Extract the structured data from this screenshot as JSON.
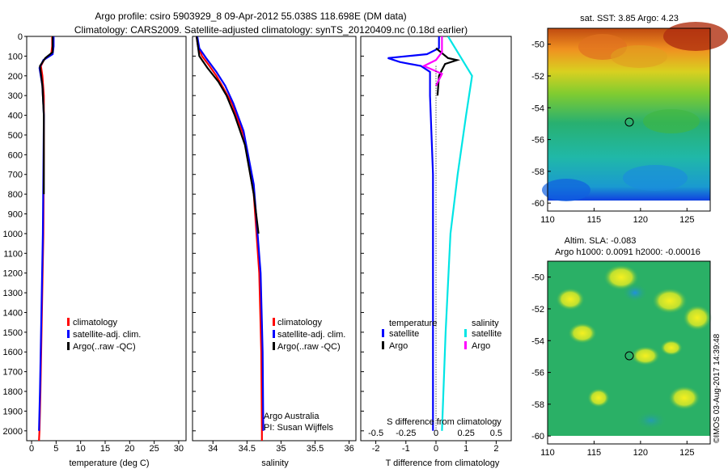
{
  "header": {
    "line1": "Argo profile: csiro 5903929_8 09-Apr-2012 55.038S 118.698E (DM data)",
    "line2": "Climatology: CARS2009. Satellite-adjusted climatology: synTS_20120409.nc (0.18d earlier)"
  },
  "colors": {
    "red": "#ff0000",
    "blue": "#0000ff",
    "black": "#000000",
    "cyan": "#00e5e5",
    "magenta": "#ff00ff"
  },
  "depth_axis": {
    "ylim": [
      0,
      2050
    ],
    "ticks": [
      0,
      100,
      200,
      300,
      400,
      500,
      600,
      700,
      800,
      900,
      1000,
      1100,
      1200,
      1300,
      1400,
      1500,
      1600,
      1700,
      1800,
      1900,
      2000
    ]
  },
  "chart_data": [
    {
      "name": "temperature-profile",
      "type": "line",
      "xlabel": "temperature (deg C)",
      "xlim": [
        -1,
        31.5
      ],
      "xticks": [
        0,
        5,
        10,
        15,
        20,
        25,
        30
      ],
      "legend": [
        "climatology",
        "satellite-adj. clim.",
        "Argo(..raw -QC)"
      ],
      "series": [
        {
          "name": "climatology",
          "color": "red",
          "points": [
            [
              4.2,
              0
            ],
            [
              4.2,
              50
            ],
            [
              4.0,
              90
            ],
            [
              2.5,
              120
            ],
            [
              1.9,
              150
            ],
            [
              2.2,
              200
            ],
            [
              2.5,
              300
            ],
            [
              2.5,
              600
            ],
            [
              2.4,
              1000
            ],
            [
              2.1,
              1400
            ],
            [
              1.8,
              1800
            ],
            [
              1.6,
              2000
            ],
            [
              1.5,
              2050
            ]
          ]
        },
        {
          "name": "satellite-adj. clim.",
          "color": "blue",
          "points": [
            [
              4.5,
              0
            ],
            [
              4.5,
              50
            ],
            [
              4.3,
              90
            ],
            [
              2.4,
              120
            ],
            [
              1.6,
              160
            ],
            [
              2.2,
              250
            ],
            [
              2.5,
              400
            ],
            [
              2.4,
              700
            ],
            [
              2.3,
              1000
            ],
            [
              2.0,
              1400
            ],
            [
              1.7,
              1800
            ],
            [
              1.5,
              2000
            ]
          ]
        },
        {
          "name": "Argo",
          "color": "black",
          "points": [
            [
              4.3,
              0
            ],
            [
              4.3,
              80
            ],
            [
              2.8,
              110
            ],
            [
              1.7,
              150
            ],
            [
              2.2,
              250
            ],
            [
              2.5,
              400
            ],
            [
              2.5,
              800
            ]
          ]
        }
      ]
    },
    {
      "name": "salinity-profile",
      "type": "line",
      "xlabel": "salinity",
      "xlim": [
        33.7,
        36.1
      ],
      "xticks": [
        "34",
        "34.5",
        "35",
        "35.5",
        "36"
      ],
      "legend": [
        "climatology",
        "satellite-adj. clim.",
        "Argo(..raw -QC)"
      ],
      "annotation": [
        "Argo Australia",
        "PI: Susan Wijffels"
      ],
      "series": [
        {
          "name": "climatology",
          "color": "red",
          "points": [
            [
              33.76,
              0
            ],
            [
              33.78,
              50
            ],
            [
              33.84,
              100
            ],
            [
              33.95,
              150
            ],
            [
              34.05,
              200
            ],
            [
              34.15,
              260
            ],
            [
              34.28,
              340
            ],
            [
              34.45,
              500
            ],
            [
              34.6,
              800
            ],
            [
              34.68,
              1200
            ],
            [
              34.71,
              1600
            ],
            [
              34.72,
              2000
            ],
            [
              34.72,
              2050
            ]
          ]
        },
        {
          "name": "satellite-adj. clim.",
          "color": "blue",
          "points": [
            [
              33.77,
              0
            ],
            [
              33.8,
              60
            ],
            [
              33.9,
              110
            ],
            [
              34.05,
              180
            ],
            [
              34.18,
              250
            ],
            [
              34.3,
              340
            ],
            [
              34.45,
              480
            ],
            [
              34.6,
              750
            ],
            [
              34.7,
              1200
            ],
            [
              34.73,
              1600
            ],
            [
              34.74,
              2000
            ]
          ]
        },
        {
          "name": "Argo",
          "color": "black",
          "points": [
            [
              33.76,
              0
            ],
            [
              33.8,
              100
            ],
            [
              33.92,
              160
            ],
            [
              34.08,
              230
            ],
            [
              34.2,
              300
            ],
            [
              34.32,
              400
            ],
            [
              34.47,
              550
            ],
            [
              34.6,
              800
            ],
            [
              34.67,
              1000
            ]
          ]
        }
      ]
    },
    {
      "name": "difference-profile",
      "type": "line",
      "xlabel_bottom": "T difference from climatology",
      "xlabel_top": "S difference from climatology",
      "xlim_T": [
        -2.5,
        2.5
      ],
      "xticks_T": [
        "-2",
        "-1",
        "0",
        "1",
        "2"
      ],
      "xticks_S": [
        "-0.5",
        "-0.25",
        "0",
        "0.25",
        "0.5"
      ],
      "legend": {
        "temperature_heading": "temperature",
        "salinity_heading": "salinity",
        "temperature": [
          "satellite",
          "Argo"
        ],
        "salinity": [
          "satellite",
          "Argo"
        ]
      },
      "series": [
        {
          "name": "temperature satellite",
          "color": "blue",
          "points": [
            [
              0.1,
              0
            ],
            [
              0.1,
              60
            ],
            [
              -0.3,
              90
            ],
            [
              -1.6,
              110
            ],
            [
              -1.2,
              130
            ],
            [
              -0.5,
              150
            ],
            [
              -0.2,
              180
            ],
            [
              -0.2,
              300
            ],
            [
              -0.1,
              700
            ],
            [
              -0.1,
              1200
            ],
            [
              -0.1,
              2000
            ]
          ]
        },
        {
          "name": "temperature Argo",
          "color": "black",
          "points": [
            [
              0.0,
              60
            ],
            [
              0.4,
              110
            ],
            [
              0.7,
              120
            ],
            [
              0.3,
              140
            ],
            [
              0.2,
              170
            ],
            [
              0.1,
              200
            ],
            [
              0.05,
              300
            ]
          ]
        },
        {
          "name": "salinity satellite",
          "color": "cyan",
          "points": [
            [
              0.1,
              0
            ],
            [
              0.2,
              100
            ],
            [
              0.3,
              200
            ],
            [
              0.25,
              400
            ],
            [
              0.18,
              700
            ],
            [
              0.12,
              1000
            ],
            [
              0.08,
              1500
            ],
            [
              0.05,
              2000
            ]
          ]
        },
        {
          "name": "salinity Argo",
          "color": "magenta",
          "points": [
            [
              0.05,
              0
            ],
            [
              0.05,
              80
            ],
            [
              0.0,
              120
            ],
            [
              -0.1,
              150
            ],
            [
              0.05,
              190
            ],
            [
              0.0,
              250
            ]
          ]
        }
      ]
    },
    {
      "name": "sst-map",
      "type": "heatmap",
      "title": "sat. SST: 3.85 Argo: 4.23",
      "xticks": [
        "110",
        "115",
        "120",
        "125"
      ],
      "yticks": [
        "-50",
        "-52",
        "-54",
        "-56",
        "-58",
        "-60"
      ],
      "xlim": [
        110,
        127.5
      ],
      "ylim": [
        -60.5,
        -49
      ],
      "marker": [
        118.7,
        -55.04
      ]
    },
    {
      "name": "sla-map",
      "type": "heatmap",
      "title": "Altim. SLA: -0.083",
      "subtitle": "Argo h1000: 0.0091 h2000: -0.00016",
      "xticks": [
        "110",
        "115",
        "120",
        "125"
      ],
      "yticks": [
        "-50",
        "-52",
        "-54",
        "-56",
        "-58",
        "-60"
      ],
      "xlim": [
        110,
        127.5
      ],
      "ylim": [
        -60.5,
        -49
      ],
      "marker": [
        118.7,
        -55.04
      ]
    }
  ],
  "watermark": "©IMOS 03-Aug-2017 14:39:48"
}
